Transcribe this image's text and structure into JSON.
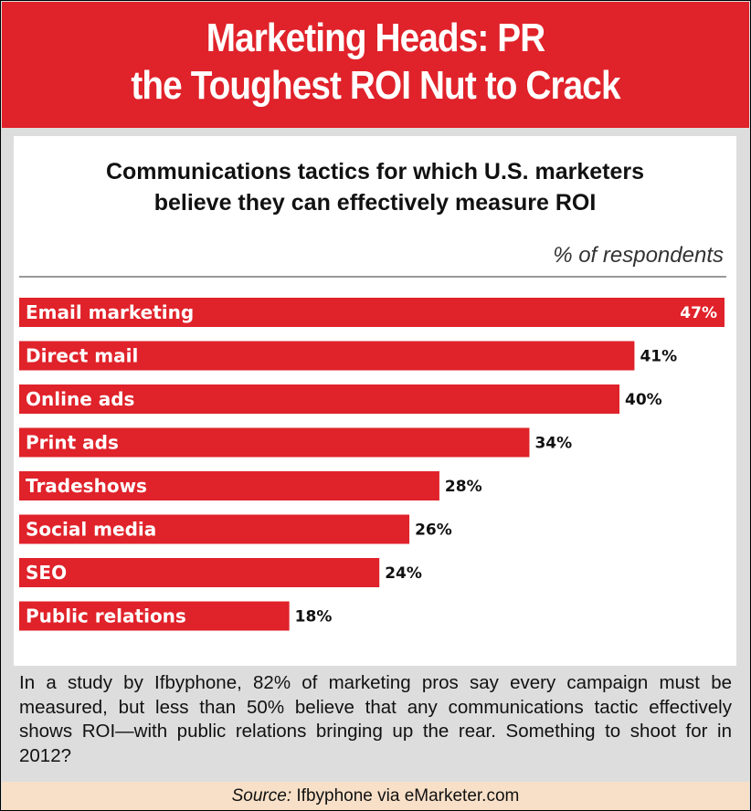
{
  "header": {
    "title_line1": "Marketing Heads: PR",
    "title_line2": "the Toughest ROI Nut to Crack"
  },
  "colors": {
    "accent": "#e0222a",
    "bar": "#e0222a",
    "source_bg": "#f8e0c8"
  },
  "chart_data": {
    "type": "bar",
    "orientation": "horizontal",
    "title": "Communications tactics for which U.S. marketers believe they can effectively measure ROI",
    "title_line1": "Communications tactics for which U.S. marketers",
    "title_line2": "believe they can effectively measure ROI",
    "unit_label": "% of respondents",
    "categories": [
      "Email marketing",
      "Direct mail",
      "Online ads",
      "Print ads",
      "Tradeshows",
      "Social media",
      "SEO",
      "Public relations"
    ],
    "values": [
      47,
      41,
      40,
      34,
      28,
      26,
      24,
      18
    ],
    "value_labels": [
      "47%",
      "41%",
      "40%",
      "34%",
      "28%",
      "26%",
      "24%",
      "18%"
    ],
    "xlim": [
      0,
      47
    ],
    "grid": false,
    "legend": "none"
  },
  "caption": "In a study by Ifbyphone, 82% of marketing pros say every campaign must be measured, but less than 50% believe that any communications tactic effectively shows ROI—with public relations bringing up the rear. Something to shoot for in 2012?",
  "source": {
    "label": "Source:",
    "text": "Ifbyphone via eMarketer.com"
  }
}
